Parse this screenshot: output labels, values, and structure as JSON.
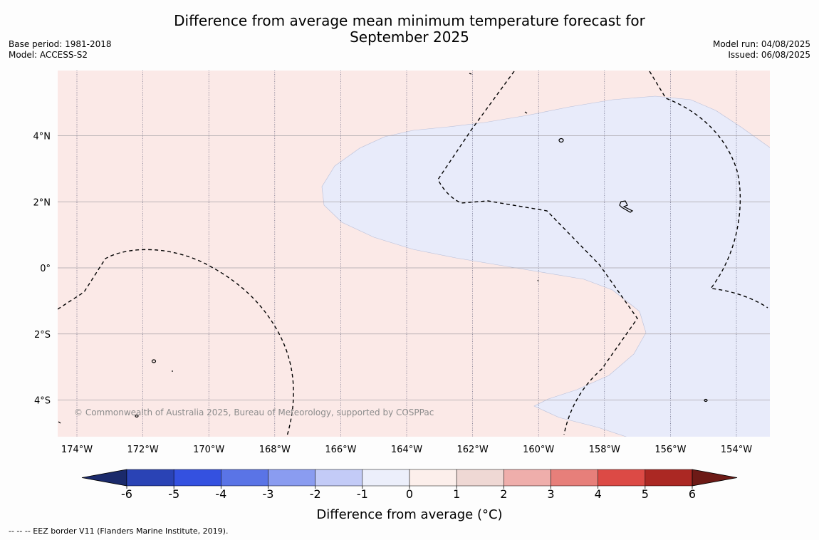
{
  "header": {
    "title_line1": "Difference from average mean minimum temperature forecast for",
    "title_line2": "September 2025",
    "base_period": "Base period: 1981-2018",
    "model": "Model: ACCESS-S2",
    "model_run": "Model run: 04/08/2025",
    "issued": "Issued: 06/08/2025"
  },
  "map": {
    "lon_labels": [
      "174°W",
      "172°W",
      "170°W",
      "168°W",
      "166°W",
      "164°W",
      "162°W",
      "160°W",
      "158°W",
      "156°W",
      "154°W"
    ],
    "lat_labels": [
      "4°N",
      "2°N",
      "0°",
      "2°S",
      "4°S"
    ],
    "copyright": "© Commonwealth of Australia 2025, Bureau of Meteorology, supported by COSPPac",
    "colors": {
      "warm_fill": "#fbe9e7",
      "cool_fill": "#e8ebfa"
    }
  },
  "colorbar": {
    "label": "Difference from average (°C)",
    "ticks": [
      "-6",
      "-5",
      "-4",
      "-3",
      "-2",
      "-1",
      "0",
      "1",
      "2",
      "3",
      "4",
      "5",
      "6"
    ],
    "colors": [
      "#1b2a6b",
      "#2a43b5",
      "#3451e0",
      "#5a74e6",
      "#8a9cf0",
      "#c3cbf7",
      "#eceffb",
      "#fcefeb",
      "#efd8d4",
      "#efaeab",
      "#e77f7a",
      "#dc4a45",
      "#ab2823",
      "#6d1a16"
    ]
  },
  "footer": {
    "eez_note": "--  --  -- EEZ border V11 (Flanders Marine Institute, 2019)."
  }
}
